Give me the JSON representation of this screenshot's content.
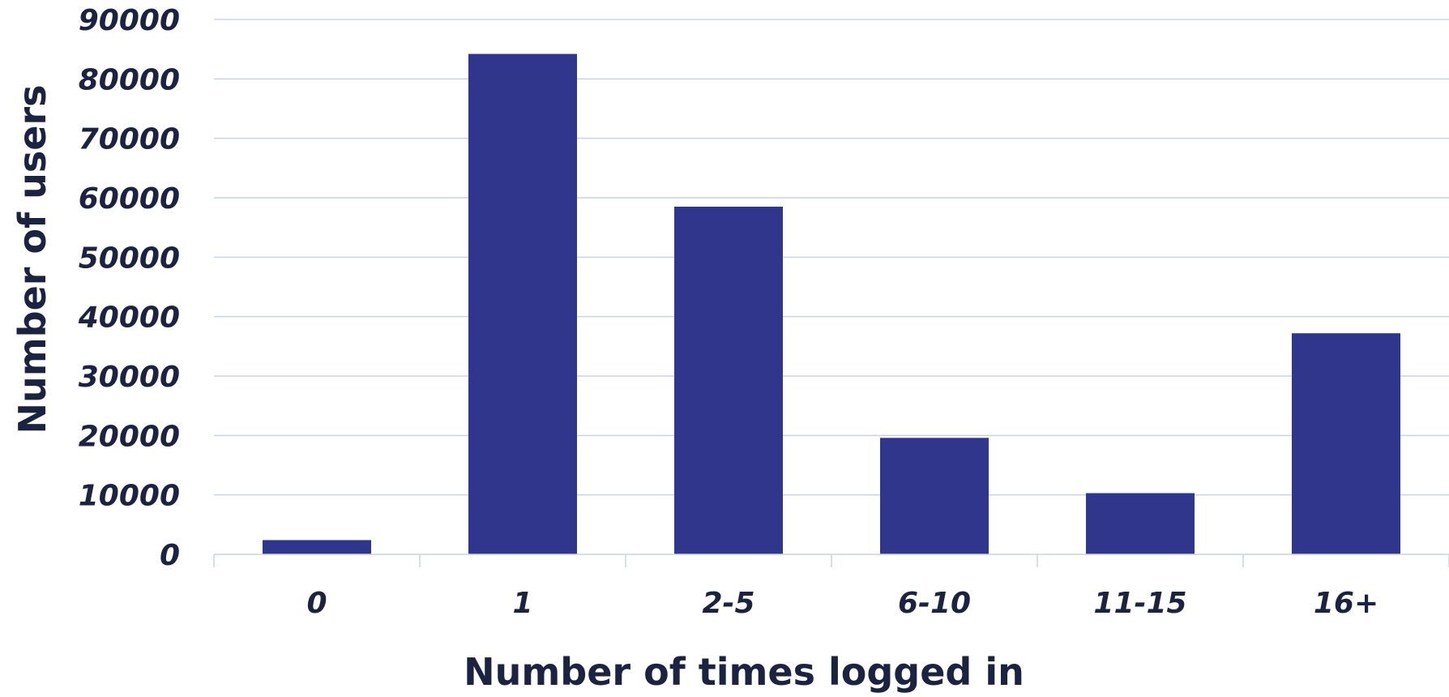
{
  "chart_data": {
    "type": "bar",
    "title": "",
    "xlabel": "Number of times logged in",
    "ylabel": "Number of users",
    "categories": [
      "0",
      "1",
      "2-5",
      "6-10",
      "11-15",
      "16+"
    ],
    "values": [
      2400,
      84200,
      58500,
      19600,
      10300,
      37200
    ],
    "ylim": [
      0,
      90000
    ],
    "yticks": [
      0,
      10000,
      20000,
      30000,
      40000,
      50000,
      60000,
      70000,
      80000,
      90000
    ],
    "ytick_labels": [
      "0",
      "10000",
      "20000",
      "30000",
      "40000",
      "50000",
      "60000",
      "70000",
      "80000",
      "90000"
    ],
    "grid": true,
    "legend": "none",
    "colors": {
      "bar": "#30368c",
      "grid": "#c8d2e6",
      "text": "#1c2340"
    }
  }
}
